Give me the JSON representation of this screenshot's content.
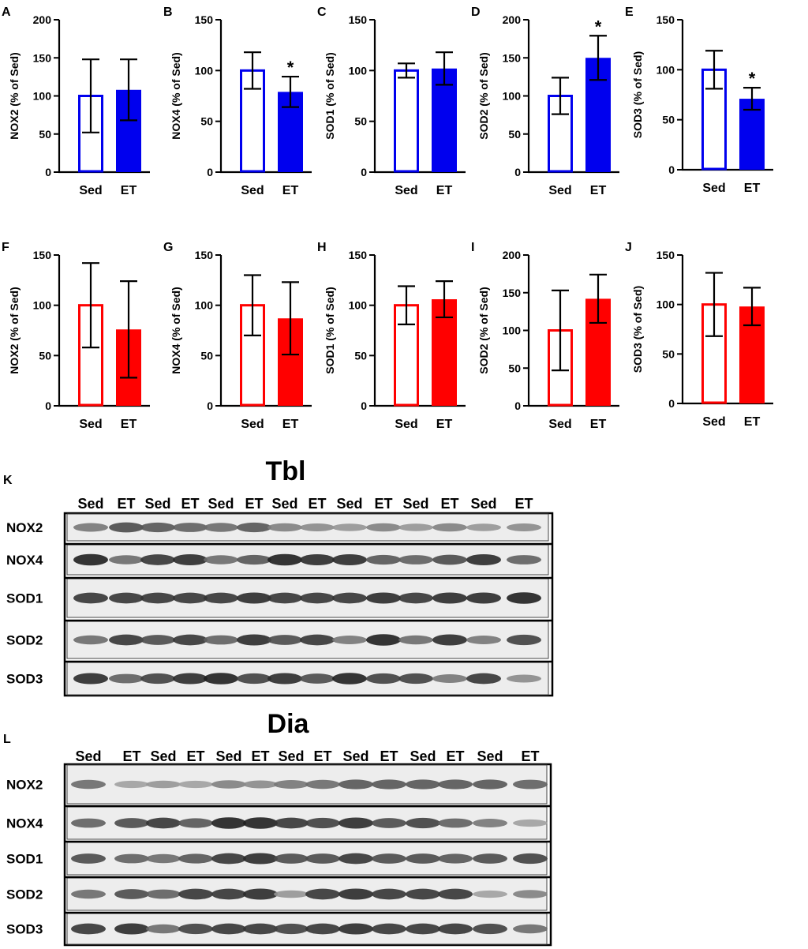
{
  "colors": {
    "top": "#0000ee",
    "bottom": "#ff0000",
    "axis": "#000000"
  },
  "x_categories": [
    "Sed",
    "ET"
  ],
  "chart_data": [
    {
      "panel": "A",
      "type": "bar",
      "ylabel": "NOX2 (% of Sed)",
      "categories": [
        "Sed",
        "ET"
      ],
      "values": [
        100,
        108
      ],
      "errors": [
        48,
        40
      ],
      "ylim": [
        0,
        200
      ],
      "yticks": [
        "0",
        "50",
        "100",
        "150",
        "200"
      ],
      "significant": [
        false,
        false
      ],
      "color": "top"
    },
    {
      "panel": "B",
      "type": "bar",
      "ylabel": "NOX4 (% of Sed)",
      "categories": [
        "Sed",
        "ET"
      ],
      "values": [
        100,
        79
      ],
      "errors": [
        18,
        15
      ],
      "ylim": [
        0,
        150
      ],
      "yticks": [
        "0",
        "50",
        "100",
        "150"
      ],
      "significant": [
        false,
        true
      ],
      "color": "top"
    },
    {
      "panel": "C",
      "type": "bar",
      "ylabel": "SOD1 (% of Sed)",
      "categories": [
        "Sed",
        "ET"
      ],
      "values": [
        100,
        102
      ],
      "errors": [
        7,
        16
      ],
      "ylim": [
        0,
        150
      ],
      "yticks": [
        "0",
        "50",
        "100",
        "150"
      ],
      "significant": [
        false,
        false
      ],
      "color": "top"
    },
    {
      "panel": "D",
      "type": "bar",
      "ylabel": "SOD2 (% of Sed)",
      "categories": [
        "Sed",
        "ET"
      ],
      "values": [
        100,
        150
      ],
      "errors": [
        24,
        29
      ],
      "ylim": [
        0,
        200
      ],
      "yticks": [
        "0",
        "50",
        "100",
        "150",
        "200"
      ],
      "significant": [
        false,
        true
      ],
      "color": "top"
    },
    {
      "panel": "E",
      "type": "bar",
      "ylabel": "SOD3 (% of Sed)",
      "categories": [
        "Sed",
        "ET"
      ],
      "values": [
        100,
        71
      ],
      "errors": [
        19,
        11
      ],
      "ylim": [
        0,
        150
      ],
      "yticks": [
        "0",
        "50",
        "100",
        "150"
      ],
      "significant": [
        false,
        true
      ],
      "color": "top"
    },
    {
      "panel": "F",
      "type": "bar",
      "ylabel": "NOX2 (% of Sed)",
      "categories": [
        "Sed",
        "ET"
      ],
      "values": [
        100,
        76
      ],
      "errors": [
        42,
        48
      ],
      "ylim": [
        0,
        150
      ],
      "yticks": [
        "0",
        "50",
        "100",
        "150"
      ],
      "significant": [
        false,
        false
      ],
      "color": "bottom"
    },
    {
      "panel": "G",
      "type": "bar",
      "ylabel": "NOX4 (% of Sed)",
      "categories": [
        "Sed",
        "ET"
      ],
      "values": [
        100,
        87
      ],
      "errors": [
        30,
        36
      ],
      "ylim": [
        0,
        150
      ],
      "yticks": [
        "0",
        "50",
        "100",
        "150"
      ],
      "significant": [
        false,
        false
      ],
      "color": "bottom"
    },
    {
      "panel": "H",
      "type": "bar",
      "ylabel": "SOD1 (% of Sed)",
      "categories": [
        "Sed",
        "ET"
      ],
      "values": [
        100,
        106
      ],
      "errors": [
        19,
        18
      ],
      "ylim": [
        0,
        150
      ],
      "yticks": [
        "0",
        "50",
        "100",
        "150"
      ],
      "significant": [
        false,
        false
      ],
      "color": "bottom"
    },
    {
      "panel": "I",
      "type": "bar",
      "ylabel": "SOD2 (% of Sed)",
      "categories": [
        "Sed",
        "ET"
      ],
      "values": [
        100,
        142
      ],
      "errors": [
        53,
        32
      ],
      "ylim": [
        0,
        200
      ],
      "yticks": [
        "0",
        "50",
        "100",
        "150",
        "200"
      ],
      "significant": [
        false,
        false
      ],
      "color": "bottom"
    },
    {
      "panel": "J",
      "type": "bar",
      "ylabel": "SOD3 (% of Sed)",
      "categories": [
        "Sed",
        "ET"
      ],
      "values": [
        100,
        98
      ],
      "errors": [
        32,
        19
      ],
      "ylim": [
        0,
        150
      ],
      "yticks": [
        "0",
        "50",
        "100",
        "150"
      ],
      "significant": [
        false,
        false
      ],
      "color": "bottom"
    }
  ],
  "blots": [
    {
      "panel": "K",
      "title": "Tbl",
      "lanes": [
        "Sed",
        "ET",
        "Sed",
        "ET",
        "Sed",
        "ET",
        "Sed",
        "ET",
        "Sed",
        "ET",
        "Sed",
        "ET",
        "Sed",
        "ET"
      ],
      "rows": [
        {
          "label": "NOX2",
          "intensity": [
            0.55,
            0.75,
            0.7,
            0.65,
            0.6,
            0.7,
            0.5,
            0.45,
            0.4,
            0.5,
            0.4,
            0.5,
            0.4,
            0.45
          ]
        },
        {
          "label": "NOX4",
          "intensity": [
            0.95,
            0.6,
            0.85,
            0.9,
            0.6,
            0.7,
            0.95,
            0.9,
            0.9,
            0.7,
            0.65,
            0.75,
            0.9,
            0.65
          ]
        },
        {
          "label": "SOD1",
          "intensity": [
            0.85,
            0.85,
            0.85,
            0.85,
            0.85,
            0.9,
            0.85,
            0.85,
            0.85,
            0.9,
            0.85,
            0.9,
            0.9,
            0.95
          ]
        },
        {
          "label": "SOD2",
          "intensity": [
            0.6,
            0.85,
            0.75,
            0.85,
            0.65,
            0.9,
            0.75,
            0.85,
            0.55,
            0.95,
            0.6,
            0.9,
            0.55,
            0.8
          ]
        },
        {
          "label": "SOD3",
          "intensity": [
            0.9,
            0.65,
            0.8,
            0.9,
            0.95,
            0.8,
            0.9,
            0.75,
            0.95,
            0.8,
            0.8,
            0.55,
            0.85,
            0.45
          ]
        }
      ]
    },
    {
      "panel": "L",
      "title": "Dia",
      "lanes": [
        "Sed",
        "ET",
        "Sed",
        "ET",
        "Sed",
        "ET",
        "Sed",
        "ET",
        "Sed",
        "ET",
        "Sed",
        "ET",
        "Sed",
        "ET"
      ],
      "rows": [
        {
          "label": "NOX2",
          "intensity": [
            0.6,
            0.35,
            0.4,
            0.35,
            0.5,
            0.45,
            0.55,
            0.6,
            0.7,
            0.7,
            0.7,
            0.7,
            0.7,
            0.65
          ]
        },
        {
          "label": "NOX4",
          "intensity": [
            0.65,
            0.75,
            0.85,
            0.7,
            0.95,
            0.95,
            0.85,
            0.8,
            0.9,
            0.75,
            0.8,
            0.65,
            0.55,
            0.35
          ]
        },
        {
          "label": "SOD1",
          "intensity": [
            0.75,
            0.65,
            0.6,
            0.7,
            0.85,
            0.9,
            0.75,
            0.75,
            0.85,
            0.75,
            0.75,
            0.7,
            0.75,
            0.8
          ]
        },
        {
          "label": "SOD2",
          "intensity": [
            0.6,
            0.75,
            0.65,
            0.85,
            0.85,
            0.9,
            0.4,
            0.85,
            0.9,
            0.85,
            0.85,
            0.85,
            0.35,
            0.5
          ]
        },
        {
          "label": "SOD3",
          "intensity": [
            0.85,
            0.9,
            0.6,
            0.8,
            0.85,
            0.85,
            0.8,
            0.85,
            0.9,
            0.85,
            0.85,
            0.85,
            0.8,
            0.6
          ]
        }
      ]
    }
  ]
}
